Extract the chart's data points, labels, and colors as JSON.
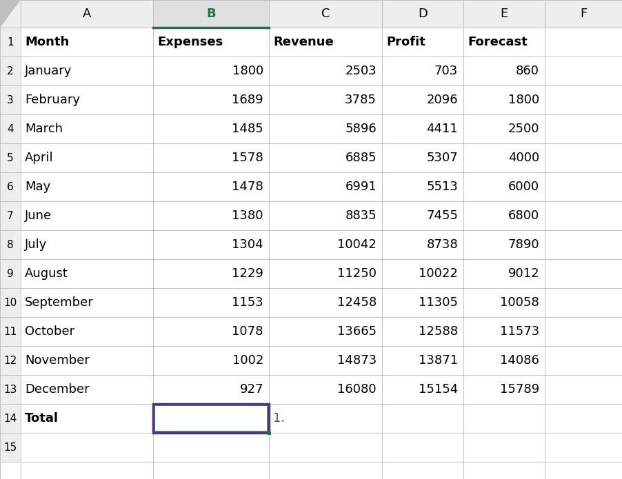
{
  "col_headers": [
    "",
    "A",
    "B",
    "C",
    "D",
    "E",
    "F"
  ],
  "headers": [
    "Month",
    "Expenses",
    "Revenue",
    "Profit",
    "Forecast"
  ],
  "months": [
    "January",
    "February",
    "March",
    "April",
    "May",
    "June",
    "July",
    "August",
    "September",
    "October",
    "November",
    "December"
  ],
  "expenses": [
    1800,
    1689,
    1485,
    1578,
    1478,
    1380,
    1304,
    1229,
    1153,
    1078,
    1002,
    927
  ],
  "revenue": [
    2503,
    3785,
    5896,
    6885,
    6991,
    8835,
    10042,
    11250,
    12458,
    13665,
    14873,
    16080
  ],
  "profit": [
    703,
    2096,
    4411,
    5307,
    5513,
    7455,
    8738,
    10022,
    11305,
    12588,
    13871,
    15154
  ],
  "forecast": [
    860,
    1800,
    2500,
    4000,
    6000,
    6800,
    7890,
    9012,
    10058,
    11573,
    14086,
    15789
  ],
  "total_label": "Total",
  "step_label": "1.",
  "bg_color": "#ffffff",
  "col_header_bg": "#eeeeee",
  "b_col_header_bg": "#e0e0e0",
  "grid_color": "#c0c0c0",
  "text_color": "#000000",
  "b_col_header_color": "#217346",
  "selected_cell_border": "#5b2d8e",
  "selected_cell_inner": "#217346",
  "step_text_color": "#7030a0",
  "font_size": 13,
  "row_num_font_size": 11
}
